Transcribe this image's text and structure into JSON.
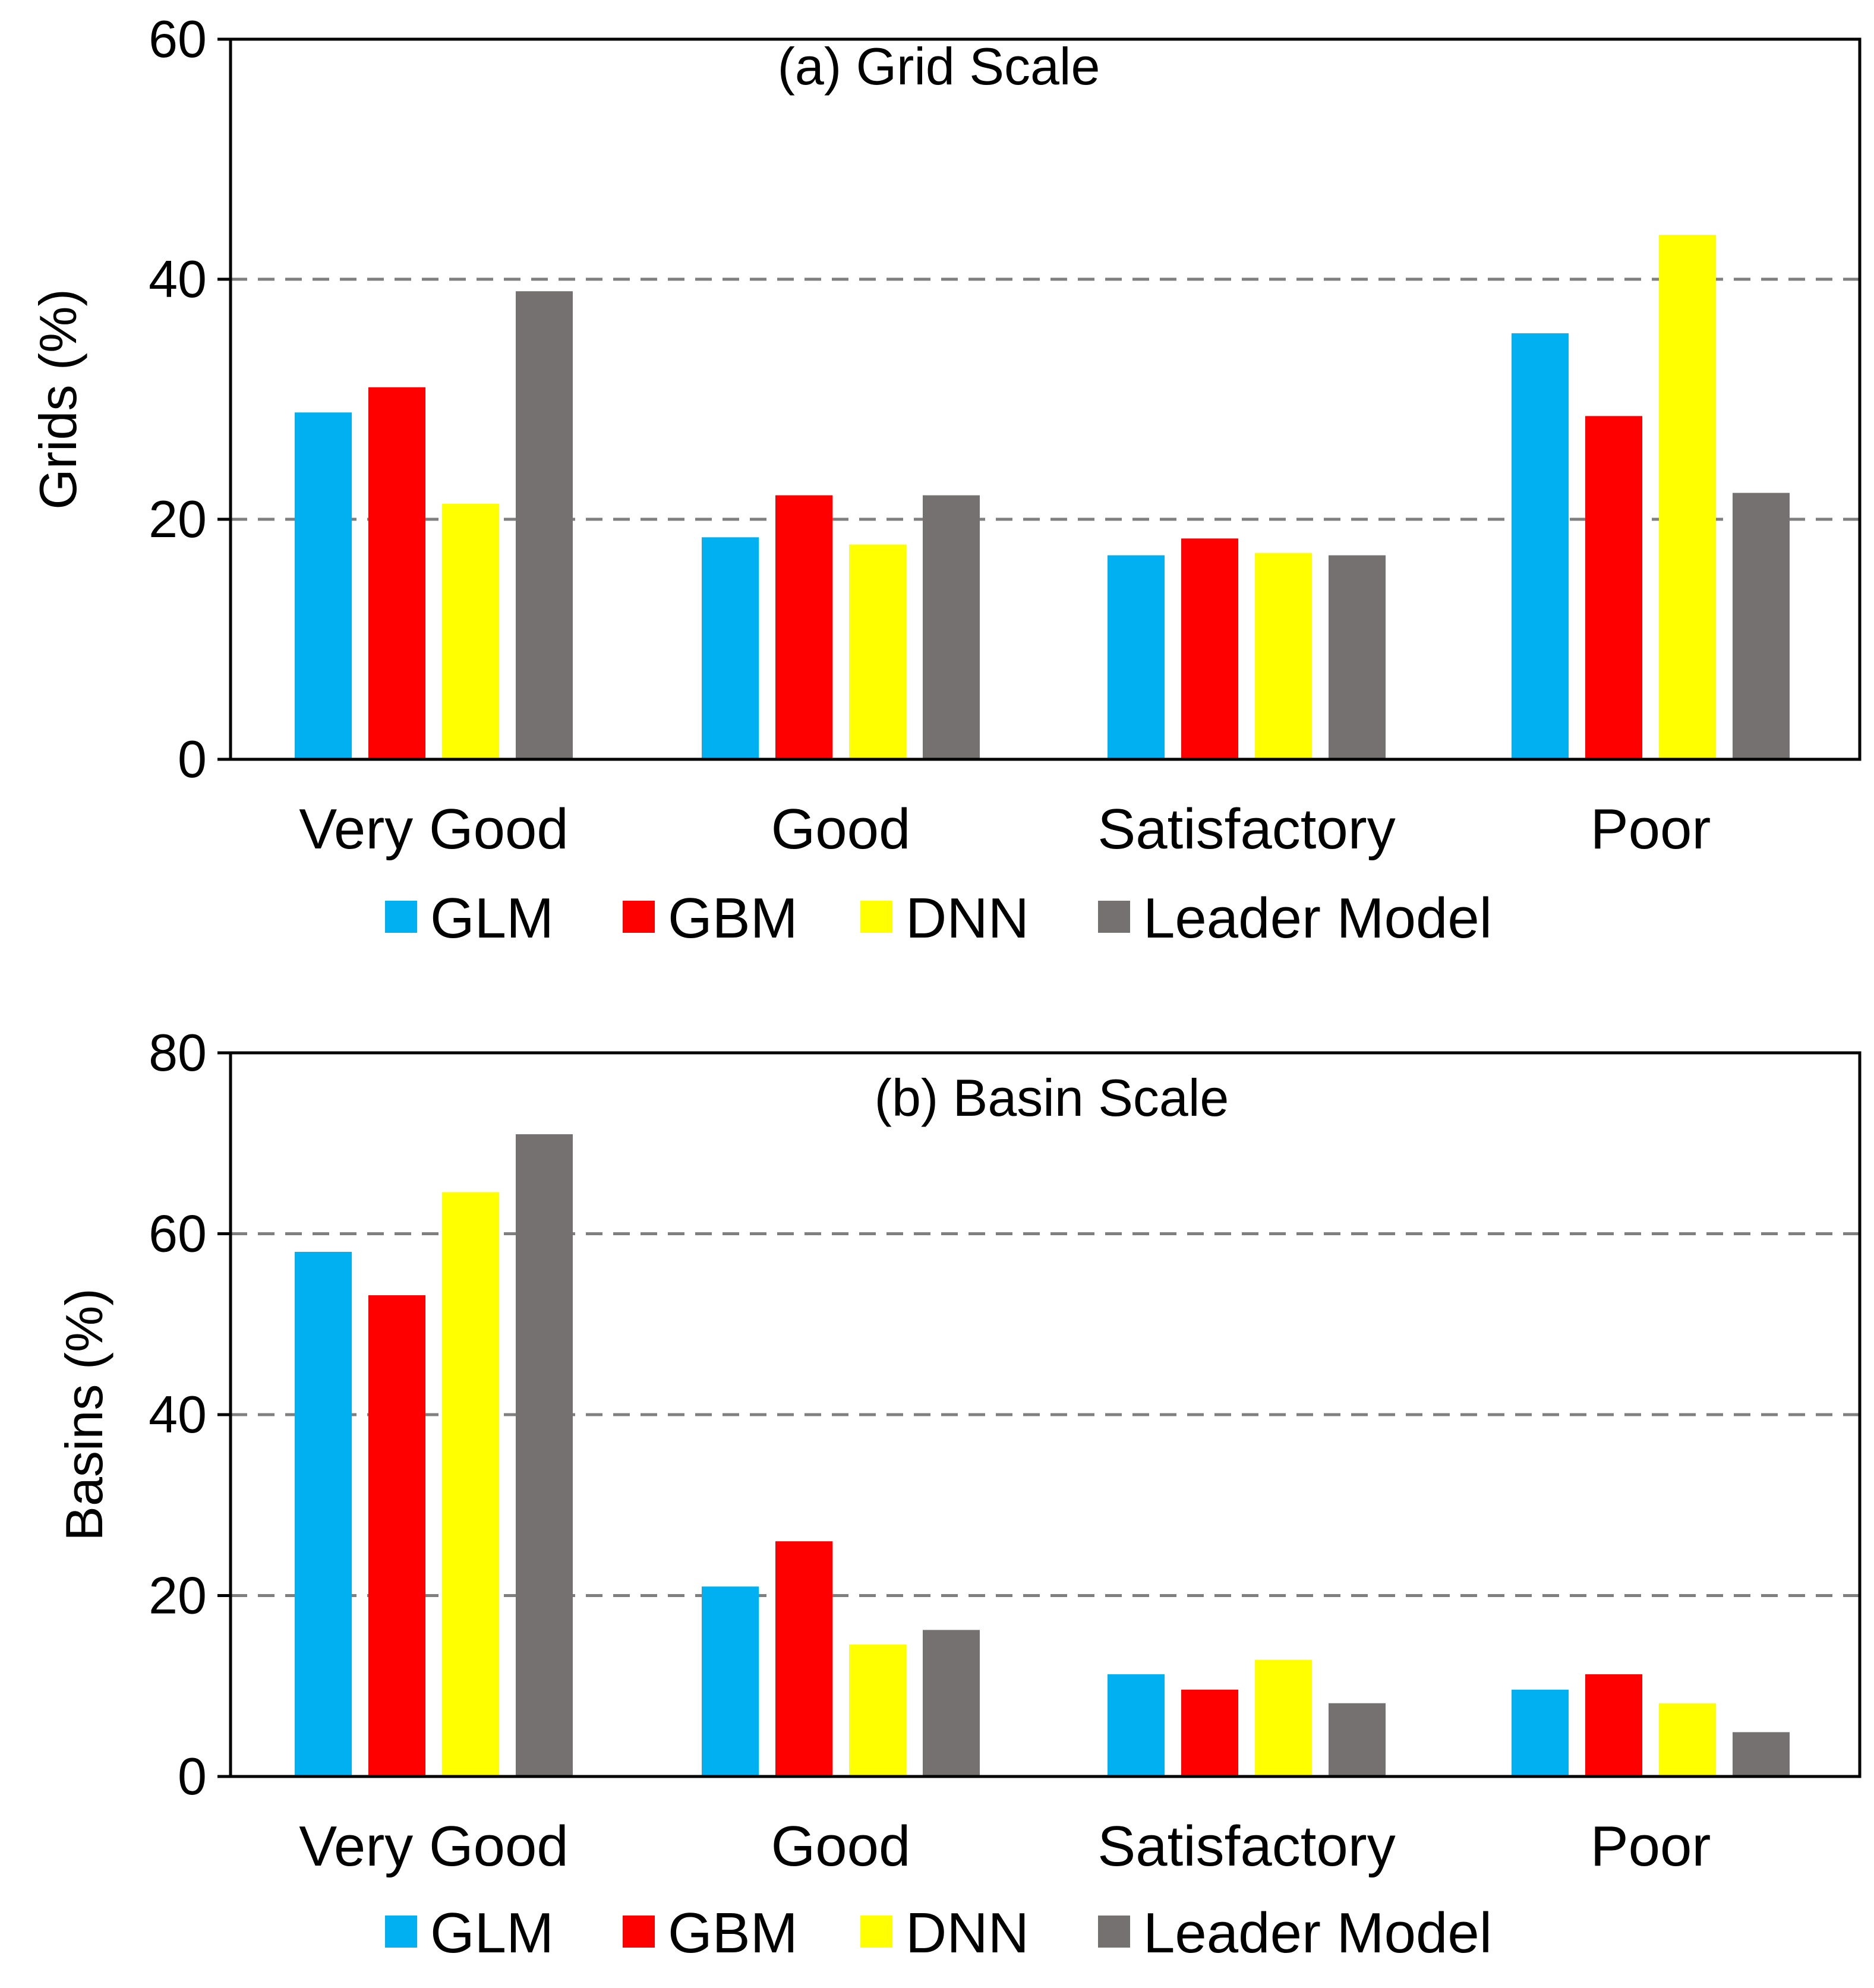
{
  "chart_data": [
    {
      "type": "bar",
      "title": "(a) Grid Scale",
      "xlabel": "",
      "ylabel": "Grids (%)",
      "ylim": [
        0,
        60
      ],
      "yticks": [
        0,
        20,
        40,
        60
      ],
      "grid": true,
      "categories": [
        "Very Good",
        "Good",
        "Satisfactory",
        "Poor"
      ],
      "legend_position": "bottom",
      "series": [
        {
          "name": "GLM",
          "color": "#00b0f0",
          "values": [
            28.9,
            18.5,
            17.0,
            35.5
          ]
        },
        {
          "name": "GBM",
          "color": "#ff0000",
          "values": [
            31.0,
            22.0,
            18.4,
            28.6
          ]
        },
        {
          "name": "DNN",
          "color": "#ffff00",
          "values": [
            21.3,
            17.9,
            17.2,
            43.7
          ]
        },
        {
          "name": "Leader Model",
          "color": "#767171",
          "values": [
            39.0,
            22.0,
            17.0,
            22.2
          ]
        }
      ]
    },
    {
      "type": "bar",
      "title": "(b) Basin Scale",
      "xlabel": "",
      "ylabel": "Basins (%)",
      "ylim": [
        0,
        80
      ],
      "yticks": [
        0,
        20,
        40,
        60,
        80
      ],
      "grid": true,
      "categories": [
        "Very Good",
        "Good",
        "Satisfactory",
        "Poor"
      ],
      "legend_position": "bottom",
      "series": [
        {
          "name": "GLM",
          "color": "#00b0f0",
          "values": [
            58.0,
            21.0,
            11.3,
            9.6
          ]
        },
        {
          "name": "GBM",
          "color": "#ff0000",
          "values": [
            53.2,
            26.0,
            9.6,
            11.3
          ]
        },
        {
          "name": "DNN",
          "color": "#ffff00",
          "values": [
            64.6,
            14.6,
            12.9,
            8.1
          ]
        },
        {
          "name": "Leader Model",
          "color": "#767171",
          "values": [
            71.0,
            16.2,
            8.1,
            4.9
          ]
        }
      ]
    }
  ]
}
